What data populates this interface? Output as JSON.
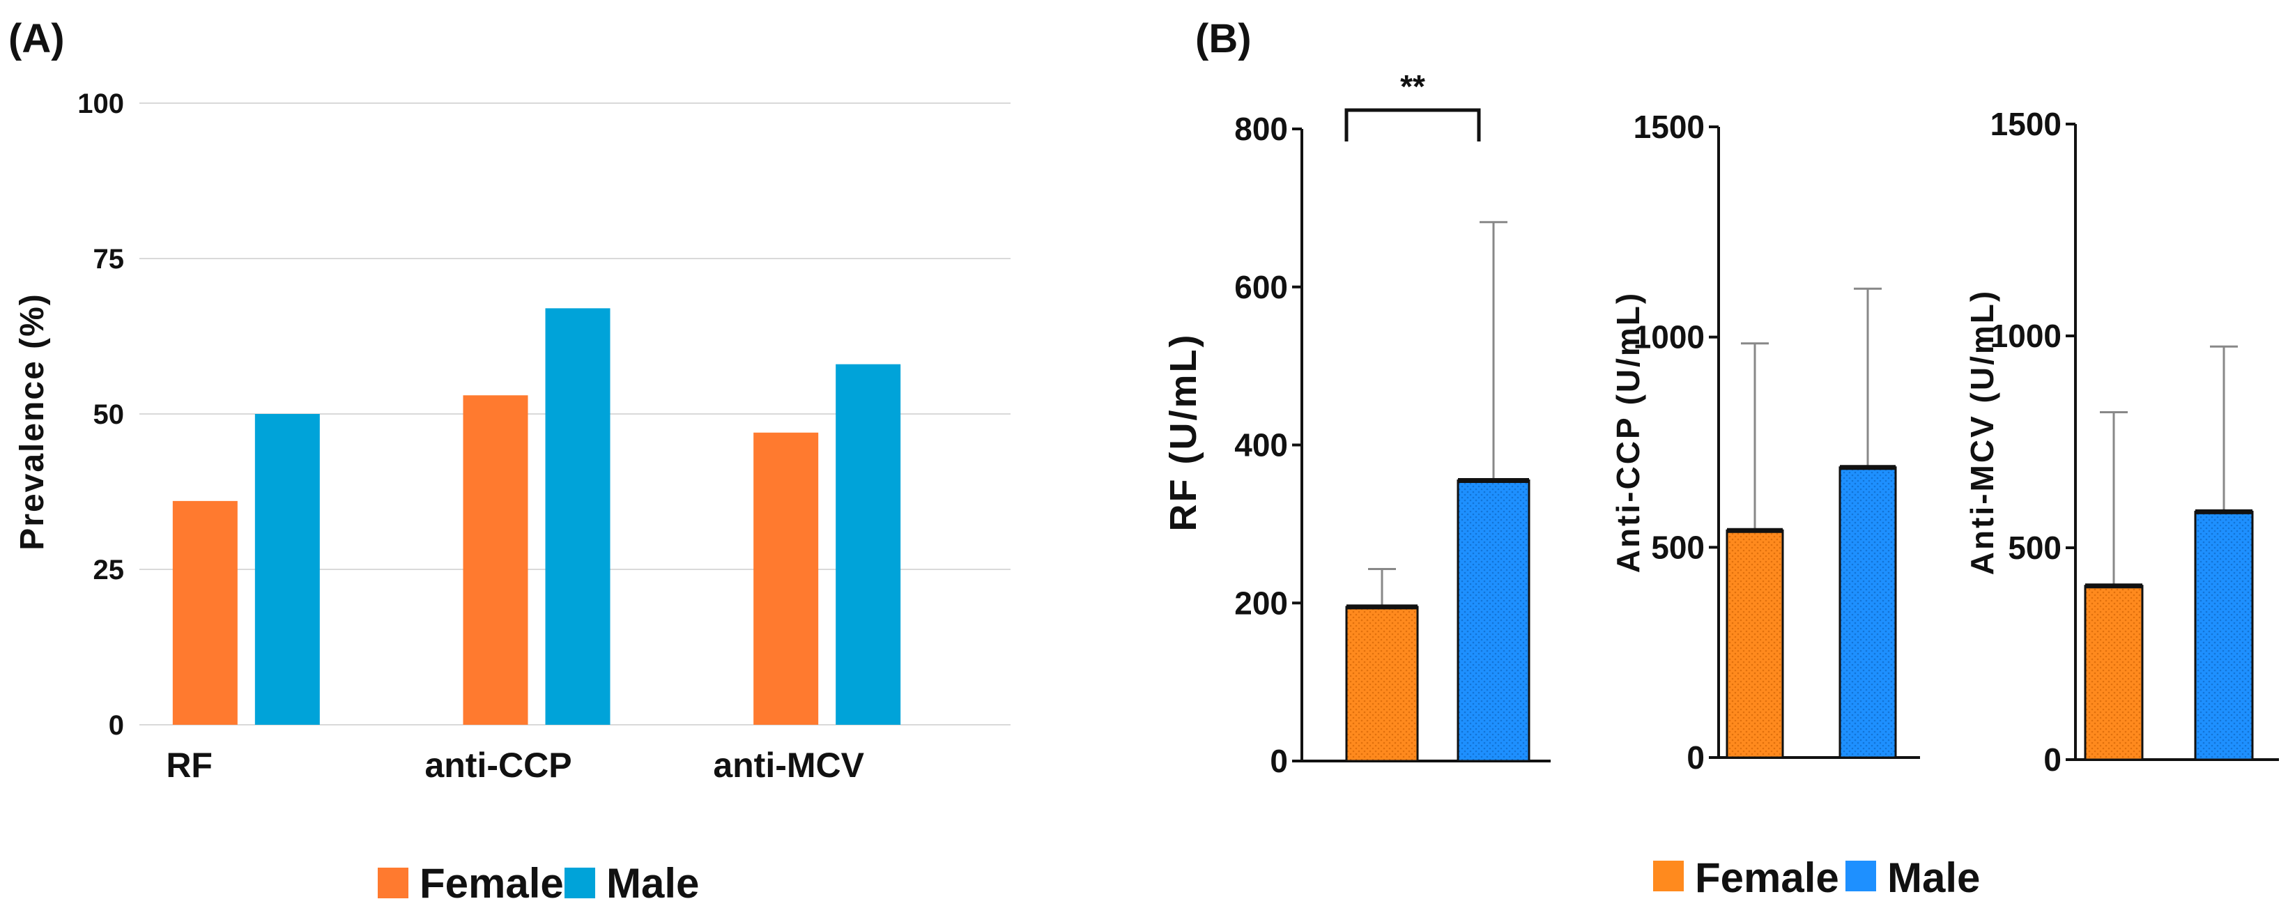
{
  "figure": {
    "panel_a_label": "(A)",
    "panel_b_label": "(B)",
    "colors": {
      "female_a": "#FF7A2F",
      "male_a": "#00A3D9",
      "female_b": "#FF8A1E",
      "male_b": "#1E90FF",
      "grid": "#D9D9D9",
      "axis": "#111111"
    },
    "legend_a": [
      {
        "label": "Female",
        "color": "#FF7A2F"
      },
      {
        "label": "Male",
        "color": "#00A3D9"
      }
    ],
    "legend_b": [
      {
        "label": "Female",
        "color": "#FF8A1E"
      },
      {
        "label": "Male",
        "color": "#1E90FF"
      }
    ],
    "significance": "**"
  },
  "chart_data": [
    {
      "type": "bar",
      "panel": "A",
      "title": "",
      "xlabel": "",
      "ylabel": "Prevalence (%)",
      "ylim": [
        0,
        100
      ],
      "yticks": [
        "0",
        "25",
        "50",
        "75",
        "100"
      ],
      "grid": true,
      "categories": [
        "RF",
        "anti-CCP",
        "anti-MCV"
      ],
      "series": [
        {
          "name": "Female",
          "values": [
            36,
            53,
            47
          ]
        },
        {
          "name": "Male",
          "values": [
            50,
            67,
            58
          ]
        }
      ],
      "legend": "bottom"
    },
    {
      "type": "bar",
      "panel": "B1",
      "ylabel": "RF (U/mL)",
      "ylim": [
        0,
        800
      ],
      "yticks": [
        "0",
        "200",
        "400",
        "600",
        "800"
      ],
      "grid": false,
      "categories": [
        "Female",
        "Male"
      ],
      "values": [
        195,
        355
      ],
      "error_upper": [
        243,
        682
      ],
      "significance": {
        "between": [
          "Female",
          "Male"
        ],
        "label": "**"
      }
    },
    {
      "type": "bar",
      "panel": "B2",
      "ylabel": "Anti-CCP (U/mL)",
      "ylim": [
        0,
        1500
      ],
      "yticks": [
        "0",
        "500",
        "1000",
        "1500"
      ],
      "grid": false,
      "categories": [
        "Female",
        "Male"
      ],
      "values": [
        540,
        690
      ],
      "error_upper": [
        985,
        1115
      ]
    },
    {
      "type": "bar",
      "panel": "B3",
      "ylabel": "Anti-MCV (U/mL)",
      "ylim": [
        0,
        1500
      ],
      "yticks": [
        "0",
        "500",
        "1000",
        "1500"
      ],
      "grid": false,
      "categories": [
        "Female",
        "Male"
      ],
      "values": [
        410,
        585
      ],
      "error_upper": [
        820,
        975
      ],
      "legend": "bottom"
    }
  ]
}
